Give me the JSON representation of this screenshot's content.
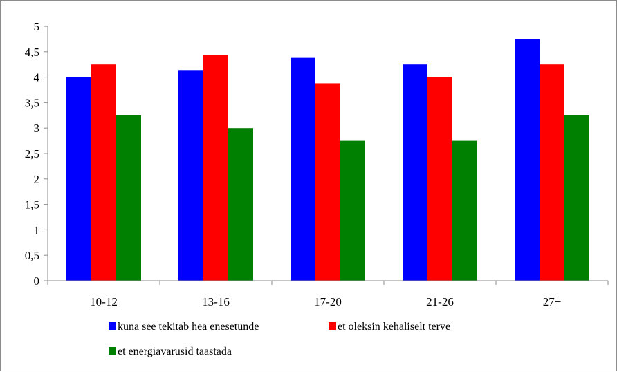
{
  "chart_data": {
    "type": "bar",
    "categories": [
      "10-12",
      "13-16",
      "17-20",
      "21-26",
      "27+"
    ],
    "series": [
      {
        "name": "kuna see tekitab hea enesetunde",
        "color": "#0000ff",
        "values": [
          4.0,
          4.14,
          4.38,
          4.25,
          4.75
        ]
      },
      {
        "name": "et oleksin kehaliselt terve",
        "color": "#ff0000",
        "values": [
          4.25,
          4.43,
          3.88,
          4.0,
          4.25
        ]
      },
      {
        "name": "et energiavarusid taastada",
        "color": "#008000",
        "values": [
          3.25,
          3.0,
          2.75,
          2.75,
          3.25
        ]
      }
    ],
    "ylim": [
      0,
      5
    ],
    "yticks": [
      "0",
      "0,5",
      "1",
      "1,5",
      "2",
      "2,5",
      "3",
      "3,5",
      "4",
      "4,5",
      "5"
    ],
    "grid": false,
    "legend_position": "bottom",
    "title": "",
    "xlabel": "",
    "ylabel": ""
  }
}
